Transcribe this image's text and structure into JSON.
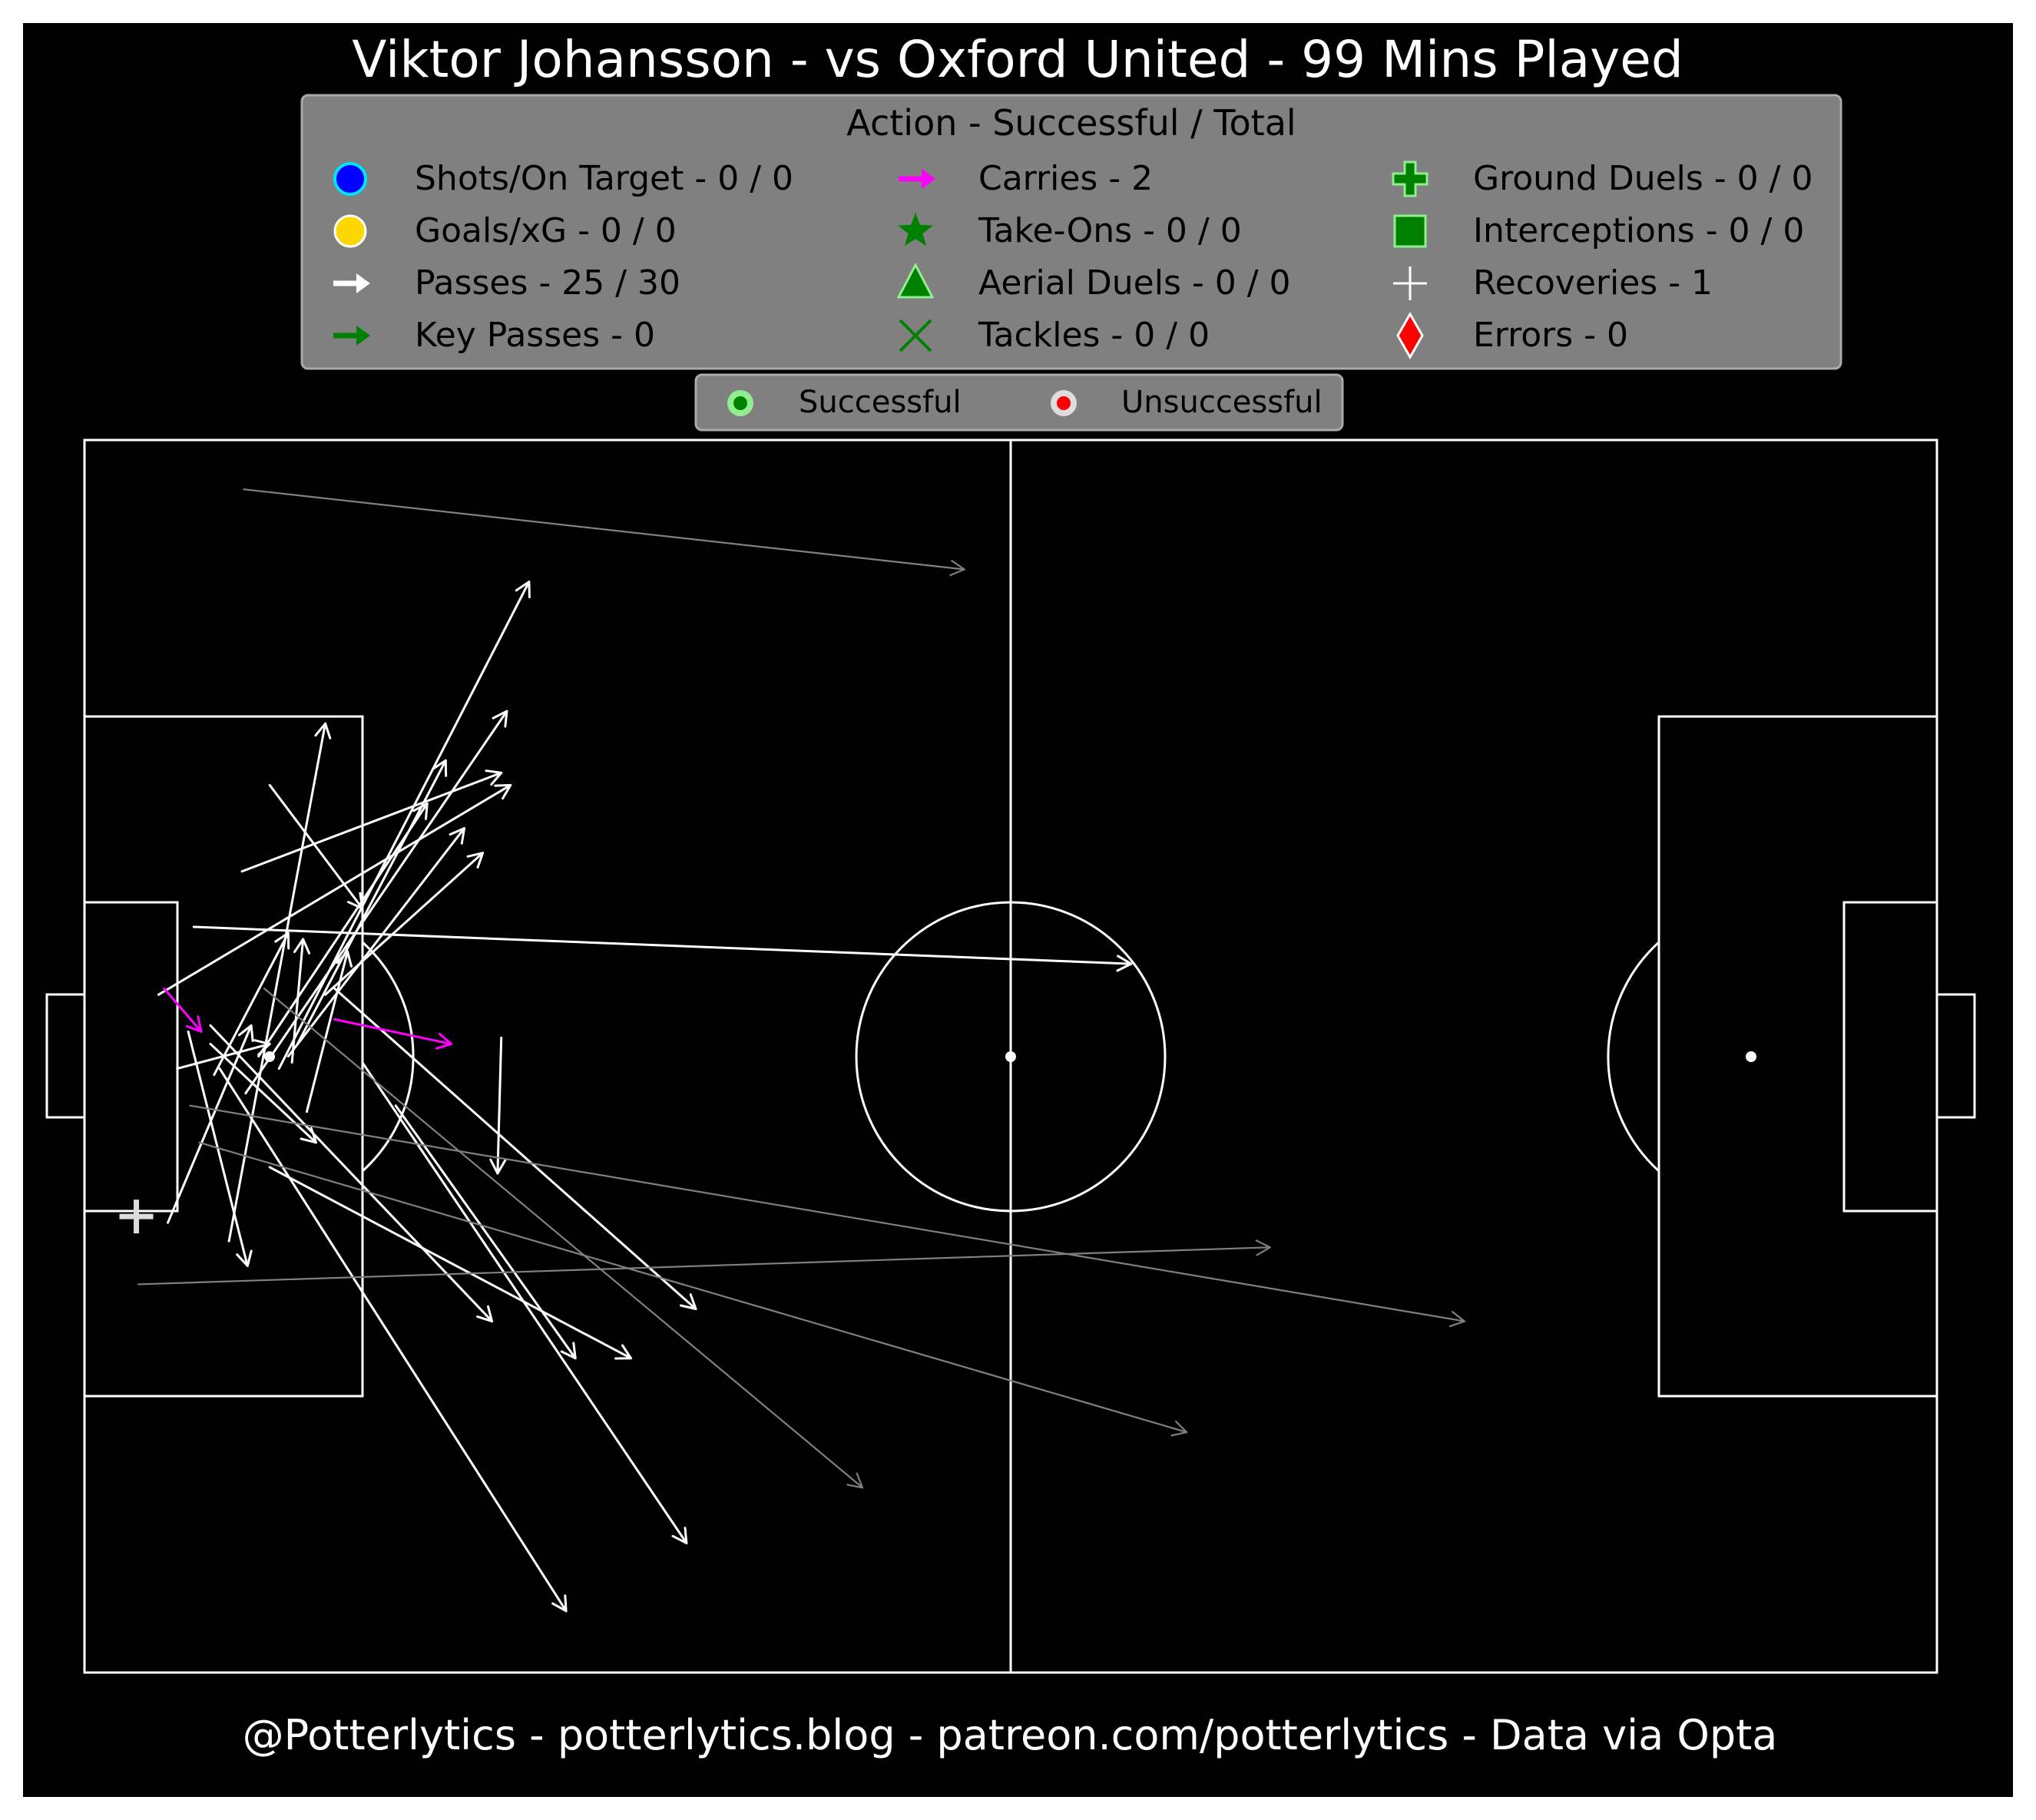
{
  "title": "Viktor Johansson - vs Oxford United - 99 Mins Played",
  "footer": "@Potterlytics - potterlytics.blog - patreon.com/potterlytics - Data via Opta",
  "legend": {
    "title": "Action - Successful / Total",
    "items": [
      {
        "label": "Shots/On Target - 0 / 0",
        "icon": "blue-circle-icon",
        "color": "#0000ff"
      },
      {
        "label": "Goals/xG - 0 / 0",
        "icon": "gold-circle-icon",
        "color": "#ffd700"
      },
      {
        "label": "Passes - 25 / 30",
        "icon": "white-arrow-icon",
        "color": "#ffffff"
      },
      {
        "label": "Key Passes - 0",
        "icon": "green-arrow-icon",
        "color": "#008000"
      },
      {
        "label": "Carries - 2",
        "icon": "magenta-arrow-icon",
        "color": "#ff00ff"
      },
      {
        "label": "Take-Ons - 0 / 0",
        "icon": "green-star-icon",
        "color": "#008000"
      },
      {
        "label": "Aerial Duels - 0 / 0",
        "icon": "green-triangle-icon",
        "color": "#008000"
      },
      {
        "label": "Tackles - 0 / 0",
        "icon": "green-x-icon",
        "color": "#008000"
      },
      {
        "label": "Ground Duels - 0 / 0",
        "icon": "green-plus-icon",
        "color": "#008000"
      },
      {
        "label": "Interceptions - 0 / 0",
        "icon": "green-square-icon",
        "color": "#008000"
      },
      {
        "label": "Recoveries - 1",
        "icon": "white-plus-icon",
        "color": "#ffffff"
      },
      {
        "label": "Errors - 0",
        "icon": "red-diamond-icon",
        "color": "#ff0000"
      }
    ]
  },
  "outcome_legend": [
    {
      "label": "Successful",
      "icon": "green-dot-icon",
      "color": "#008000"
    },
    {
      "label": "Unsuccessful",
      "icon": "red-dot-icon",
      "color": "#ff0000"
    }
  ],
  "colors": {
    "background": "#000000",
    "pitch_lines": "#ffffff",
    "legend_box": "#808080",
    "pass_successful": "#ffffff",
    "pass_unsuccessful": "#808080",
    "carry": "#ff00ff",
    "recovery": "#ffffff"
  },
  "chart_data": {
    "type": "scatter",
    "pitch": {
      "length": 100,
      "width": 100,
      "orientation": "attacking left-to-right"
    },
    "passes": [
      {
        "x": 4.5,
        "y": 36.5,
        "end_x": 9.0,
        "end_y": 52.5,
        "successful": true
      },
      {
        "x": 7.8,
        "y": 35.0,
        "end_x": 13.0,
        "end_y": 77.0,
        "successful": true
      },
      {
        "x": 5.6,
        "y": 52.0,
        "end_x": 8.8,
        "end_y": 33.0,
        "successful": true
      },
      {
        "x": 5.0,
        "y": 49.0,
        "end_x": 10.0,
        "end_y": 51.0,
        "successful": true
      },
      {
        "x": 6.8,
        "y": 51.0,
        "end_x": 12.5,
        "end_y": 43.0,
        "successful": true
      },
      {
        "x": 4.0,
        "y": 55.0,
        "end_x": 23.0,
        "end_y": 72.0,
        "successful": true
      },
      {
        "x": 11.5,
        "y": 51.0,
        "end_x": 19.5,
        "end_y": 74.0,
        "successful": true
      },
      {
        "x": 8.7,
        "y": 47.0,
        "end_x": 22.8,
        "end_y": 78.0,
        "successful": true
      },
      {
        "x": 9.4,
        "y": 50.0,
        "end_x": 18.5,
        "end_y": 70.5,
        "successful": true
      },
      {
        "x": 11.0,
        "y": 50.0,
        "end_x": 20.5,
        "end_y": 68.5,
        "successful": true
      },
      {
        "x": 10.5,
        "y": 49.0,
        "end_x": 24.0,
        "end_y": 88.5,
        "successful": true
      },
      {
        "x": 13.0,
        "y": 55.0,
        "end_x": 21.5,
        "end_y": 66.5,
        "successful": true
      },
      {
        "x": 10.0,
        "y": 72.0,
        "end_x": 15.0,
        "end_y": 62.0,
        "successful": true
      },
      {
        "x": 7.0,
        "y": 48.5,
        "end_x": 11.0,
        "end_y": 60.0,
        "successful": true
      },
      {
        "x": 11.2,
        "y": 49.5,
        "end_x": 11.8,
        "end_y": 59.5,
        "successful": true
      },
      {
        "x": 12.0,
        "y": 45.5,
        "end_x": 14.2,
        "end_y": 58.5,
        "successful": true
      },
      {
        "x": 13.5,
        "y": 55.5,
        "end_x": 33.0,
        "end_y": 29.5,
        "successful": true
      },
      {
        "x": 6.8,
        "y": 52.5,
        "end_x": 22.0,
        "end_y": 28.5,
        "successful": true
      },
      {
        "x": 10.0,
        "y": 41.0,
        "end_x": 29.5,
        "end_y": 25.5,
        "successful": true
      },
      {
        "x": 7.3,
        "y": 49.0,
        "end_x": 26.0,
        "end_y": 5.0,
        "successful": true
      },
      {
        "x": 16.8,
        "y": 46.0,
        "end_x": 26.5,
        "end_y": 25.5,
        "successful": true
      },
      {
        "x": 22.5,
        "y": 51.5,
        "end_x": 22.3,
        "end_y": 40.5,
        "successful": true
      },
      {
        "x": 15.0,
        "y": 49.5,
        "end_x": 32.5,
        "end_y": 10.5,
        "successful": true
      },
      {
        "x": 5.9,
        "y": 60.5,
        "end_x": 56.5,
        "end_y": 57.5,
        "successful": true
      },
      {
        "x": 8.5,
        "y": 65.0,
        "end_x": 22.5,
        "end_y": 73.0,
        "successful": true
      },
      {
        "x": 5.7,
        "y": 46.0,
        "end_x": 74.5,
        "end_y": 28.5,
        "successful": false
      },
      {
        "x": 2.9,
        "y": 31.5,
        "end_x": 64.0,
        "end_y": 34.5,
        "successful": false
      },
      {
        "x": 6.2,
        "y": 43.0,
        "end_x": 59.5,
        "end_y": 19.5,
        "successful": false
      },
      {
        "x": 9.7,
        "y": 55.5,
        "end_x": 42.0,
        "end_y": 15.0,
        "successful": false
      },
      {
        "x": 8.6,
        "y": 96.0,
        "end_x": 47.5,
        "end_y": 89.5,
        "successful": false
      }
    ],
    "carries": [
      {
        "x": 4.3,
        "y": 55.5,
        "end_x": 6.3,
        "end_y": 52.0
      },
      {
        "x": 13.5,
        "y": 53.0,
        "end_x": 19.8,
        "end_y": 51.0
      }
    ],
    "recoveries": [
      {
        "x": 2.8,
        "y": 37.0
      }
    ],
    "title": "Viktor Johansson - vs Oxford United - 99 Mins Played"
  }
}
